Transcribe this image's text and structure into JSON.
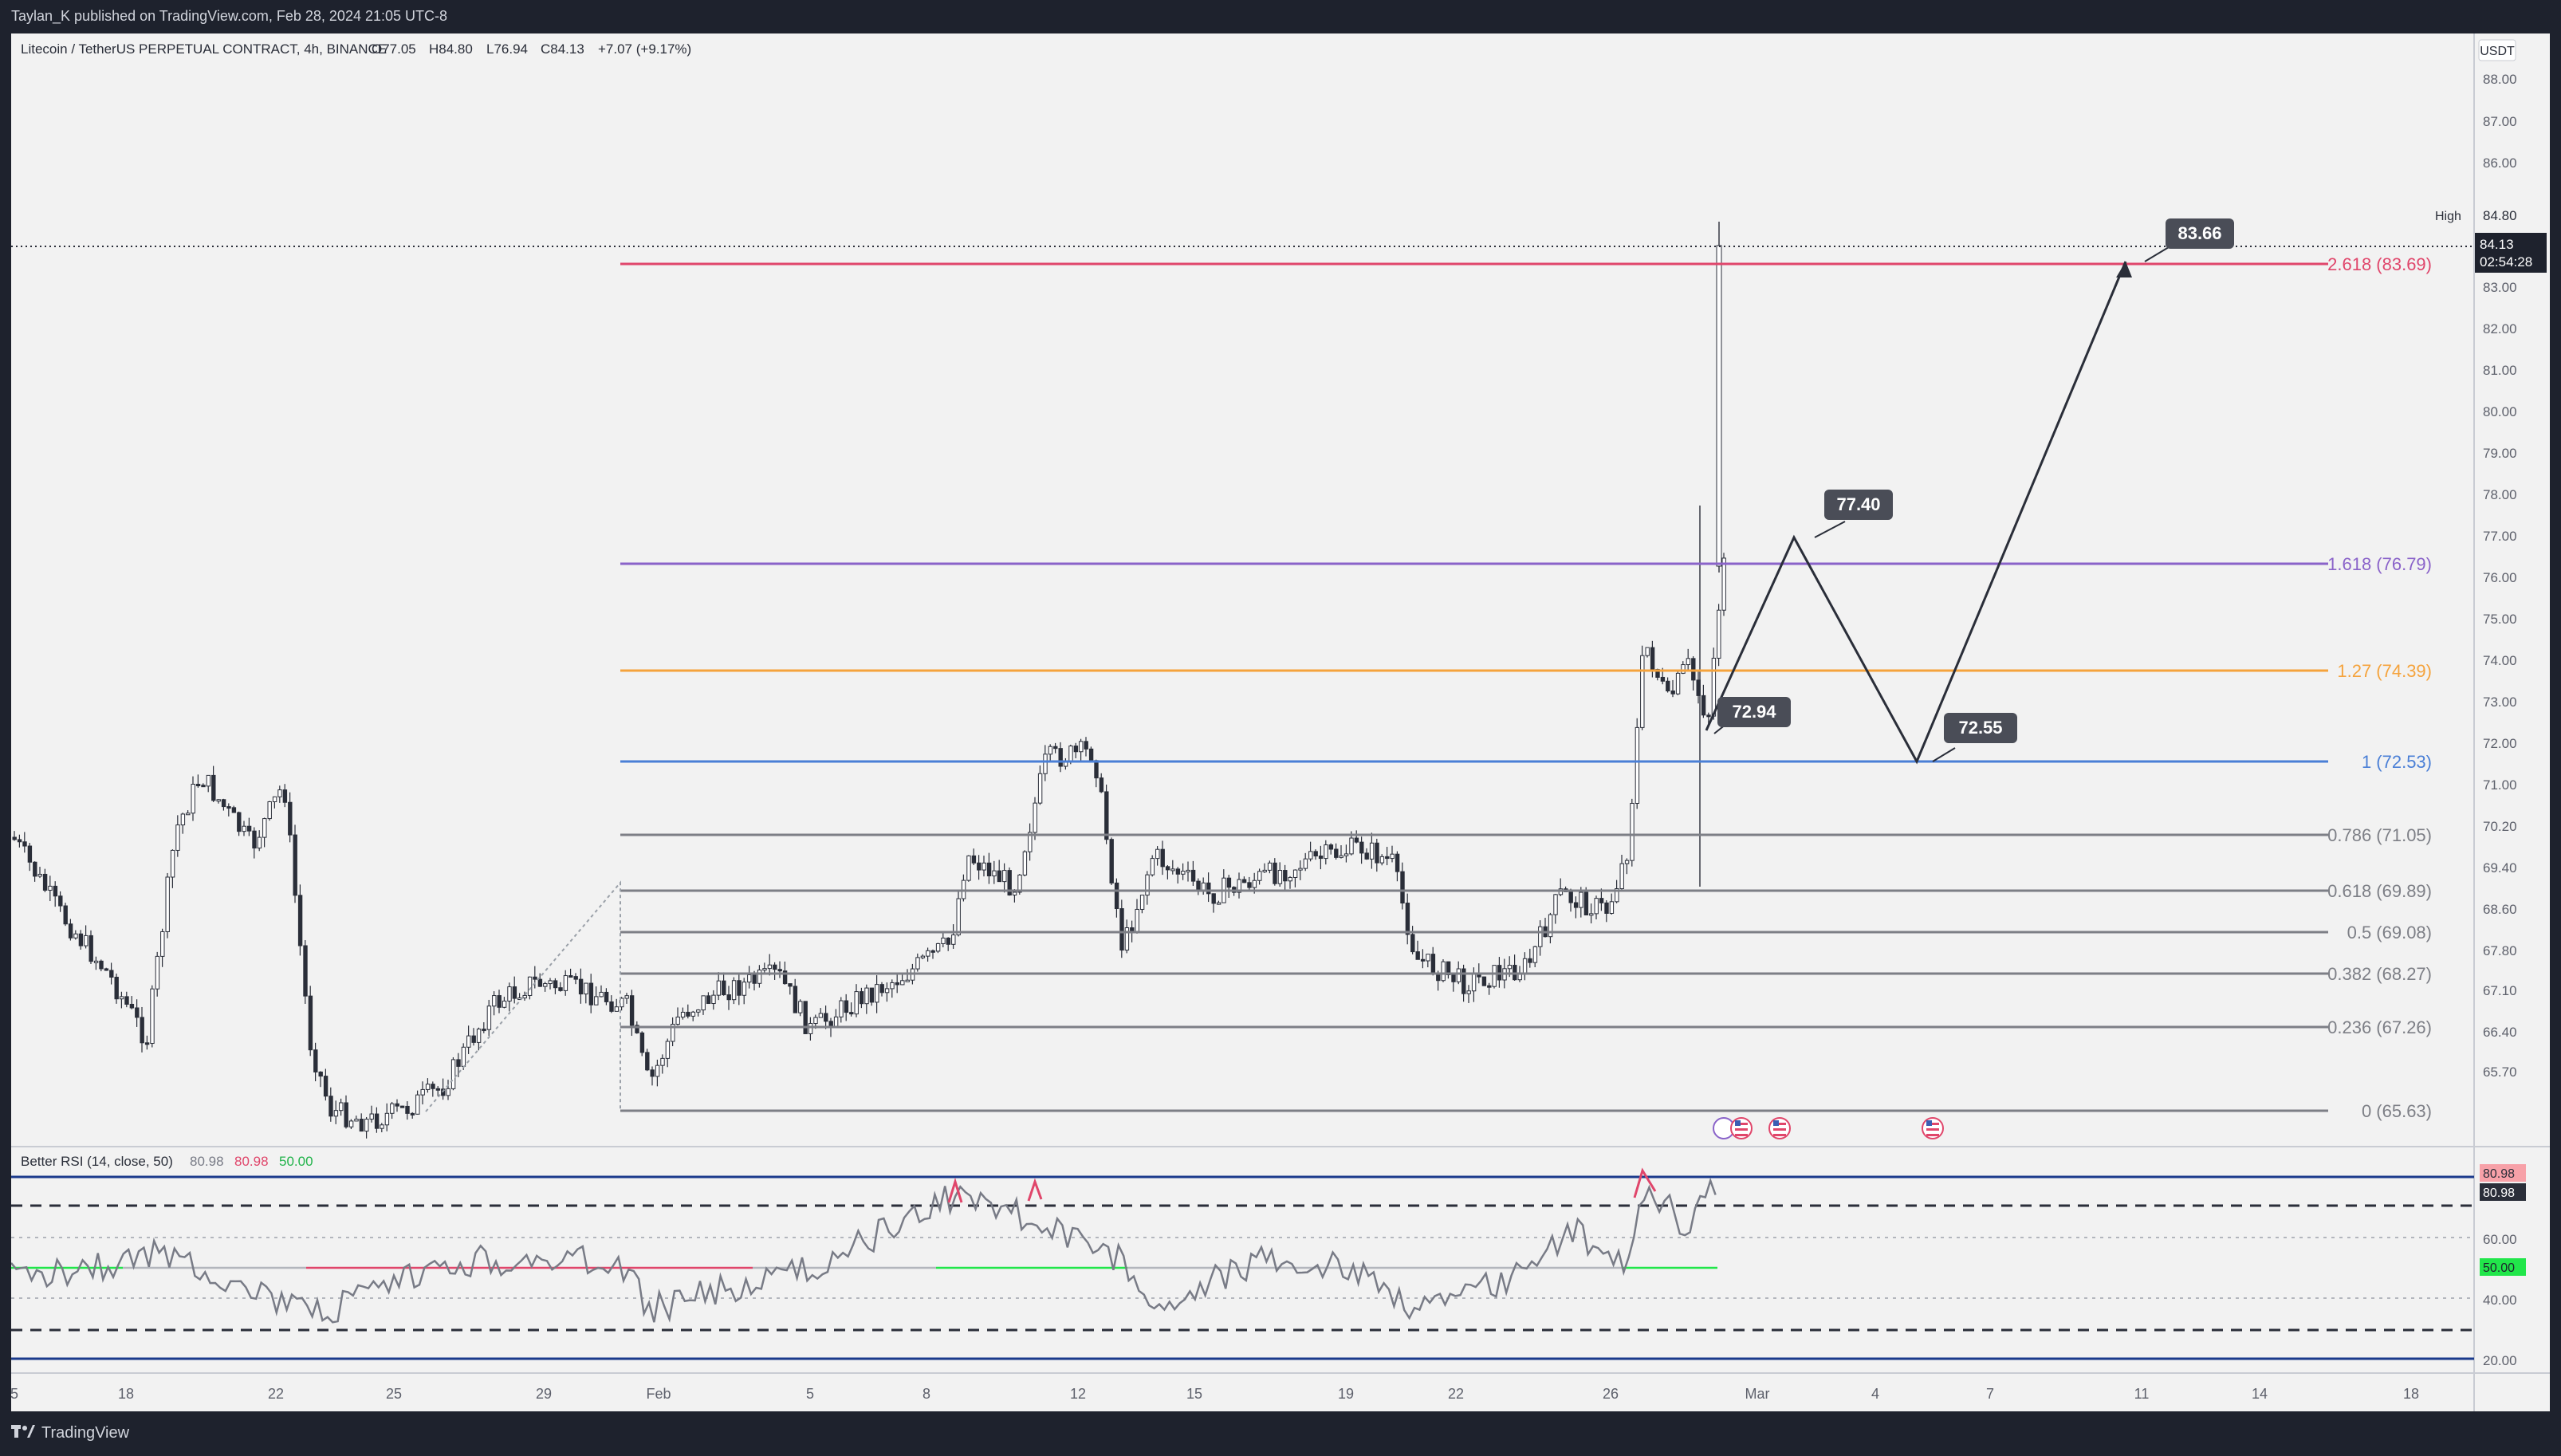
{
  "publisher_line": "Taylan_K published on TradingView.com, Feb 28, 2024 21:05 UTC-8",
  "footer_brand": "TradingView",
  "legend": {
    "symbol": "Litecoin / TetherUS PERPETUAL CONTRACT, 4h, BINANCE",
    "open": "O77.05",
    "high": "H84.80",
    "low": "L76.94",
    "close": "C84.13",
    "change": "+7.07 (+9.17%)"
  },
  "rsi_legend": {
    "name": "Better RSI (14, close, 50)",
    "v1": "80.98",
    "v2": "80.98",
    "v3": "50.00"
  },
  "currency": "USDT",
  "price_axis": [
    "88.00",
    "87.00",
    "86.00",
    "83.00",
    "82.00",
    "81.00",
    "80.00",
    "79.00",
    "78.00",
    "77.00",
    "76.00",
    "75.00",
    "74.00",
    "73.00",
    "72.00",
    "71.00",
    "70.20",
    "69.40",
    "68.60",
    "67.80",
    "67.10",
    "66.40",
    "65.70"
  ],
  "rsi_axis": [
    "60.00",
    "40.00",
    "20.00"
  ],
  "high_label": "High",
  "high_value": "84.80",
  "last_price": "84.13",
  "countdown": "02:54:28",
  "rsi_badge_top": "80.98",
  "rsi_badge_mid": "80.98",
  "rsi_badge_50": "50.00",
  "fib_levels": [
    {
      "label": "2.618 (83.69)",
      "color": "#e0466b"
    },
    {
      "label": "1.618 (76.79)",
      "color": "#8a63c9"
    },
    {
      "label": "1.27 (74.39)",
      "color": "#f5a33c"
    },
    {
      "label": "1 (72.53)",
      "color": "#4a7fd6"
    },
    {
      "label": "0.786 (71.05)",
      "color": "#7d7f86"
    },
    {
      "label": "0.618 (69.89)",
      "color": "#7d7f86"
    },
    {
      "label": "0.5 (69.08)",
      "color": "#7d7f86"
    },
    {
      "label": "0.382 (68.27)",
      "color": "#7d7f86"
    },
    {
      "label": "0.236 (67.26)",
      "color": "#7d7f86"
    },
    {
      "label": "0 (65.63)",
      "color": "#7d7f86"
    }
  ],
  "callouts": [
    "83.66",
    "77.40",
    "72.94",
    "72.55"
  ],
  "time_axis": [
    "5",
    "18",
    "22",
    "25",
    "29",
    "Feb",
    "5",
    "8",
    "12",
    "15",
    "19",
    "22",
    "26",
    "Mar",
    "4",
    "7",
    "11",
    "14",
    "18"
  ],
  "colors": {
    "bull": "#ffffff",
    "bear": "#2a2e39",
    "accent_pink": "#e0466b",
    "rsi_line": "#787b86"
  },
  "icons": [
    "tradingview-logo-icon",
    "us-flag-icon"
  ]
}
